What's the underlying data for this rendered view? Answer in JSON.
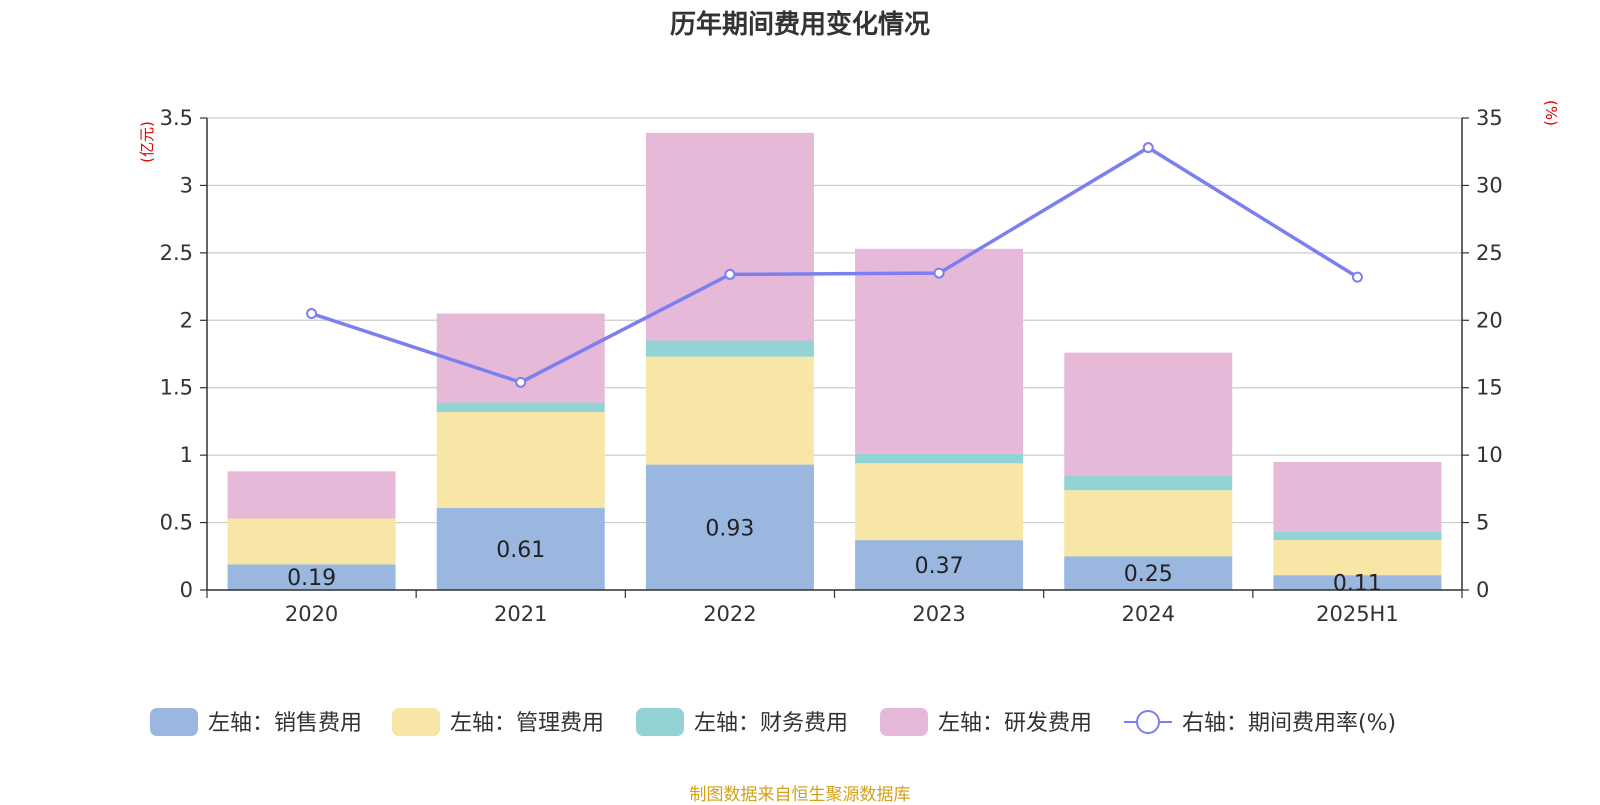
{
  "chart_data": {
    "type": "bar",
    "title": "历年期间费用变化情况",
    "categories": [
      "2020",
      "2021",
      "2022",
      "2023",
      "2024",
      "2025H1"
    ],
    "series": [
      {
        "name": "左轴：销售费用",
        "axis": "left",
        "kind": "bar",
        "color": "#9ab7e0",
        "values": [
          0.19,
          0.61,
          0.93,
          0.37,
          0.25,
          0.11
        ],
        "labels": [
          "0.19",
          "0.61",
          "0.93",
          "0.37",
          "0.25",
          "0.11"
        ]
      },
      {
        "name": "左轴：管理费用",
        "axis": "left",
        "kind": "bar",
        "color": "#f7e6a6",
        "values": [
          0.34,
          0.71,
          0.8,
          0.57,
          0.49,
          0.26
        ]
      },
      {
        "name": "左轴：财务费用",
        "axis": "left",
        "kind": "bar",
        "color": "#93d3d3",
        "values": [
          0.0,
          0.07,
          0.12,
          0.07,
          0.11,
          0.06
        ]
      },
      {
        "name": "左轴：研发费用",
        "axis": "left",
        "kind": "bar",
        "color": "#e7b9d9",
        "values": [
          0.35,
          0.66,
          1.54,
          1.52,
          0.91,
          0.52
        ]
      },
      {
        "name": "右轴：期间费用率(%)",
        "axis": "right",
        "kind": "line",
        "color": "#7b7ff0",
        "values": [
          20.5,
          15.4,
          23.4,
          23.5,
          32.8,
          23.2
        ]
      }
    ],
    "y_left": {
      "unit": "(亿元)",
      "ylim": [
        0,
        3.5
      ],
      "ticks": [
        "0",
        "0.5",
        "1",
        "1.5",
        "2",
        "2.5",
        "3",
        "3.5"
      ]
    },
    "y_right": {
      "unit": "(%)",
      "ylim": [
        0,
        35
      ],
      "ticks": [
        "0",
        "5",
        "10",
        "15",
        "20",
        "25",
        "30",
        "35"
      ]
    },
    "grid": true,
    "legend": "bottom-center"
  },
  "source_note": "制图数据来自恒生聚源数据库"
}
